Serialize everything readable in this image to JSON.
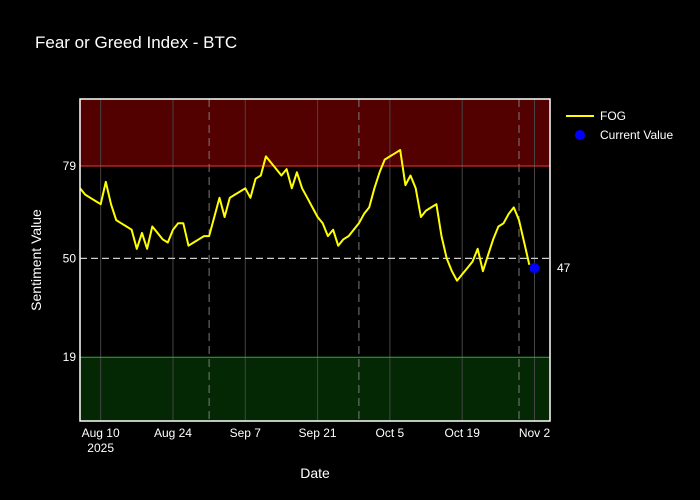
{
  "chart_data": {
    "type": "line",
    "title": "Fear or Greed Index - BTC",
    "xlabel": "Date",
    "ylabel": "Sentiment Value",
    "x_range": [
      "2025-08-06",
      "2025-11-05"
    ],
    "ylim": [
      -1,
      100
    ],
    "x_ticks": [
      {
        "date": "2025-08-10",
        "label": "Aug 10",
        "sublabel": "2025"
      },
      {
        "date": "2025-08-24",
        "label": "Aug 24"
      },
      {
        "date": "2025-09-07",
        "label": "Sep 7"
      },
      {
        "date": "2025-09-21",
        "label": "Sep 21"
      },
      {
        "date": "2025-10-05",
        "label": "Oct 5"
      },
      {
        "date": "2025-10-19",
        "label": "Oct 19"
      },
      {
        "date": "2025-11-02",
        "label": "Nov 2"
      }
    ],
    "y_ticks": [
      19,
      50,
      79
    ],
    "greed_threshold": 79,
    "fear_threshold": 19,
    "neutral_line": 50,
    "greed_zone_color": "#520000",
    "fear_zone_color": "#042804",
    "dashed_vertical_dates": [
      "2025-08-31",
      "2025-09-29",
      "2025-10-30"
    ],
    "series": [
      {
        "name": "FOG",
        "color": "#ffff00",
        "x": [
          "2025-08-06",
          "2025-08-07",
          "2025-08-08",
          "2025-08-09",
          "2025-08-10",
          "2025-08-11",
          "2025-08-12",
          "2025-08-13",
          "2025-08-14",
          "2025-08-15",
          "2025-08-16",
          "2025-08-17",
          "2025-08-18",
          "2025-08-19",
          "2025-08-20",
          "2025-08-21",
          "2025-08-22",
          "2025-08-23",
          "2025-08-24",
          "2025-08-25",
          "2025-08-26",
          "2025-08-27",
          "2025-08-28",
          "2025-08-29",
          "2025-08-30",
          "2025-08-31",
          "2025-09-01",
          "2025-09-02",
          "2025-09-03",
          "2025-09-04",
          "2025-09-05",
          "2025-09-06",
          "2025-09-07",
          "2025-09-08",
          "2025-09-09",
          "2025-09-10",
          "2025-09-11",
          "2025-09-12",
          "2025-09-13",
          "2025-09-14",
          "2025-09-15",
          "2025-09-16",
          "2025-09-17",
          "2025-09-18",
          "2025-09-19",
          "2025-09-20",
          "2025-09-21",
          "2025-09-22",
          "2025-09-23",
          "2025-09-24",
          "2025-09-25",
          "2025-09-26",
          "2025-09-27",
          "2025-09-28",
          "2025-09-29",
          "2025-09-30",
          "2025-10-01",
          "2025-10-02",
          "2025-10-03",
          "2025-10-04",
          "2025-10-05",
          "2025-10-06",
          "2025-10-07",
          "2025-10-08",
          "2025-10-09",
          "2025-10-10",
          "2025-10-11",
          "2025-10-12",
          "2025-10-13",
          "2025-10-14",
          "2025-10-15",
          "2025-10-16",
          "2025-10-17",
          "2025-10-18",
          "2025-10-19",
          "2025-10-20",
          "2025-10-21",
          "2025-10-22",
          "2025-10-23",
          "2025-10-24",
          "2025-10-25",
          "2025-10-26",
          "2025-10-27",
          "2025-10-28",
          "2025-10-29",
          "2025-10-30",
          "2025-10-31",
          "2025-11-01"
        ],
        "values": [
          72,
          70,
          69,
          68,
          67,
          74,
          67,
          62,
          61,
          60,
          59,
          53,
          58,
          53,
          60,
          58,
          56,
          55,
          59,
          61,
          61,
          54,
          55,
          56,
          57,
          57,
          63,
          69,
          63,
          69,
          70,
          71,
          72,
          69,
          75,
          76,
          82,
          80,
          78,
          76,
          78,
          72,
          77,
          72,
          69,
          66,
          63,
          61,
          57,
          59,
          54,
          56,
          57,
          59,
          61,
          64,
          66,
          72,
          77,
          81,
          82,
          83,
          84,
          73,
          76,
          72,
          63,
          65,
          66,
          67,
          57,
          50,
          46,
          43,
          45,
          47,
          49,
          53,
          46,
          51,
          56,
          60,
          61,
          64,
          66,
          62,
          55,
          48
        ]
      }
    ],
    "current_value": {
      "name": "Current Value",
      "date": "2025-11-02",
      "value": 47,
      "label": "47",
      "color": "#0000ff"
    }
  }
}
